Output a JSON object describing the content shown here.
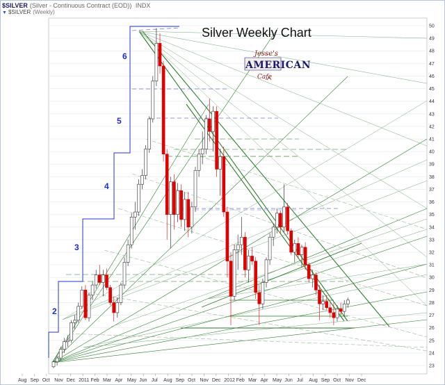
{
  "header": {
    "symbol": "$SILVER",
    "description": "(Silver - Continuous Contract (EOD))",
    "exchange": "INDX",
    "symbol_line2": "$SILVER",
    "period": "(Weekly)"
  },
  "logo": {
    "line1": "Jesse's",
    "line2": "AMERICAN",
    "line3": "Cafe"
  },
  "chart_data": {
    "type": "candlestick",
    "title": "Silver Weekly Chart",
    "y_axis": {
      "min": 22.6,
      "max": 50.2,
      "side": "right",
      "ticks": [
        23,
        24,
        25,
        26,
        27,
        28,
        29,
        30,
        31,
        32,
        33,
        34,
        35,
        36,
        37,
        38,
        39,
        40,
        41,
        42,
        43,
        44,
        45,
        46,
        47,
        48,
        49,
        50
      ]
    },
    "x_axis": {
      "ticks": [
        "Aug",
        "Sep",
        "Oct",
        "Nov",
        "Dec",
        "2011",
        "Feb",
        "Mar",
        "Apr",
        "May",
        "Jun",
        "Jul",
        "Aug",
        "Sep",
        "Oct",
        "Nov",
        "Dec",
        "2012",
        "Feb",
        "Mar",
        "Apr",
        "May",
        "Jun",
        "Jul",
        "Aug",
        "Sep",
        "Oct",
        "Nov",
        "Dec"
      ]
    },
    "colors": {
      "up": "#ffffff",
      "down": "#e00000",
      "steps": "#2233dd",
      "fan": "#2e7d2e",
      "level": "#8888ee"
    },
    "wave_labels": [
      "2",
      "3",
      "4",
      "5",
      "6"
    ],
    "weeks": [
      [
        22.9,
        23.4,
        22.8,
        23.3
      ],
      [
        23.3,
        23.8,
        23.0,
        23.6
      ],
      [
        23.6,
        24.5,
        23.4,
        24.3
      ],
      [
        24.3,
        25.2,
        24.0,
        24.9
      ],
      [
        24.9,
        25.4,
        24.5,
        25.0
      ],
      [
        25.0,
        26.6,
        24.8,
        26.4
      ],
      [
        26.4,
        27.0,
        25.9,
        26.6
      ],
      [
        26.6,
        28.0,
        26.4,
        27.7
      ],
      [
        27.7,
        29.3,
        27.5,
        29.0
      ],
      [
        29.0,
        29.4,
        26.6,
        26.8
      ],
      [
        26.8,
        28.8,
        26.5,
        28.6
      ],
      [
        28.6,
        29.7,
        28.2,
        29.4
      ],
      [
        29.4,
        30.6,
        29.1,
        30.2
      ],
      [
        30.2,
        31.0,
        29.4,
        29.6
      ],
      [
        29.6,
        30.6,
        28.5,
        30.2
      ],
      [
        30.2,
        30.7,
        29.0,
        29.2
      ],
      [
        29.2,
        29.4,
        27.8,
        28.0
      ],
      [
        28.0,
        28.5,
        26.5,
        27.2
      ],
      [
        27.2,
        28.4,
        26.8,
        28.0
      ],
      [
        28.0,
        29.6,
        27.8,
        29.4
      ],
      [
        29.4,
        31.6,
        29.1,
        31.2
      ],
      [
        31.2,
        33.0,
        30.9,
        32.6
      ],
      [
        32.6,
        35.1,
        32.3,
        34.8
      ],
      [
        34.8,
        36.0,
        33.8,
        35.2
      ],
      [
        35.2,
        37.8,
        34.9,
        37.4
      ],
      [
        37.4,
        38.6,
        37.0,
        38.1
      ],
      [
        38.1,
        40.5,
        37.8,
        40.2
      ],
      [
        40.2,
        42.8,
        39.9,
        42.6
      ],
      [
        42.6,
        46.0,
        42.3,
        45.6
      ],
      [
        45.6,
        49.8,
        45.2,
        48.6
      ],
      [
        48.6,
        49.4,
        46.2,
        46.8
      ],
      [
        46.8,
        47.2,
        39.2,
        39.8
      ],
      [
        39.8,
        40.2,
        33.0,
        35.0
      ],
      [
        35.0,
        38.0,
        32.3,
        37.6
      ],
      [
        37.6,
        38.2,
        33.8,
        35.0
      ],
      [
        35.0,
        37.5,
        34.4,
        36.9
      ],
      [
        36.9,
        37.4,
        34.0,
        34.6
      ],
      [
        34.6,
        36.8,
        33.7,
        36.2
      ],
      [
        36.2,
        36.8,
        33.2,
        34.0
      ],
      [
        34.0,
        36.0,
        33.5,
        35.6
      ],
      [
        35.6,
        38.8,
        35.2,
        38.5
      ],
      [
        38.5,
        40.2,
        38.0,
        39.8
      ],
      [
        39.8,
        41.6,
        39.0,
        40.2
      ],
      [
        40.2,
        42.9,
        39.8,
        42.6
      ],
      [
        42.6,
        44.2,
        40.8,
        41.6
      ],
      [
        41.6,
        43.6,
        40.0,
        43.2
      ],
      [
        43.2,
        43.6,
        38.0,
        38.6
      ],
      [
        38.6,
        40.2,
        36.5,
        39.6
      ],
      [
        39.6,
        40.4,
        34.8,
        35.2
      ],
      [
        35.2,
        35.6,
        30.0,
        31.3
      ],
      [
        31.3,
        32.0,
        26.2,
        28.5
      ],
      [
        28.5,
        32.6,
        28.2,
        32.2
      ],
      [
        32.2,
        33.4,
        30.6,
        32.6
      ],
      [
        32.6,
        34.8,
        31.8,
        33.2
      ],
      [
        33.2,
        33.6,
        30.0,
        30.6
      ],
      [
        30.6,
        32.2,
        29.6,
        31.7
      ],
      [
        31.7,
        32.4,
        31.0,
        31.3
      ],
      [
        31.3,
        31.6,
        28.3,
        28.8
      ],
      [
        28.8,
        29.4,
        26.2,
        27.9
      ],
      [
        27.9,
        29.9,
        27.5,
        29.6
      ],
      [
        29.6,
        31.6,
        29.2,
        31.4
      ],
      [
        31.4,
        33.5,
        31.0,
        33.2
      ],
      [
        33.2,
        34.3,
        32.5,
        34.0
      ],
      [
        34.0,
        35.5,
        33.5,
        35.1
      ],
      [
        35.1,
        35.3,
        33.5,
        34.0
      ],
      [
        34.0,
        37.4,
        33.6,
        35.6
      ],
      [
        35.6,
        35.9,
        33.4,
        33.7
      ],
      [
        33.7,
        33.9,
        31.8,
        32.0
      ],
      [
        32.0,
        33.0,
        31.2,
        32.7
      ],
      [
        32.7,
        33.2,
        31.5,
        31.8
      ],
      [
        31.8,
        32.6,
        30.8,
        32.4
      ],
      [
        32.4,
        32.8,
        30.6,
        31.0
      ],
      [
        31.0,
        31.2,
        29.6,
        29.9
      ],
      [
        29.9,
        30.6,
        29.2,
        30.2
      ],
      [
        30.2,
        30.4,
        28.6,
        29.0
      ],
      [
        29.0,
        29.4,
        26.6,
        27.9
      ],
      [
        27.9,
        28.6,
        27.4,
        28.1
      ],
      [
        28.1,
        28.6,
        27.4,
        27.6
      ],
      [
        27.6,
        28.0,
        26.8,
        27.2
      ],
      [
        27.2,
        28.0,
        26.2,
        26.8
      ],
      [
        26.8,
        27.8,
        26.5,
        27.5
      ],
      [
        27.5,
        28.0,
        27.0,
        27.3
      ],
      [
        27.3,
        28.2,
        26.9,
        27.9
      ],
      [
        27.9,
        28.4,
        27.6,
        28.2
      ]
    ]
  }
}
